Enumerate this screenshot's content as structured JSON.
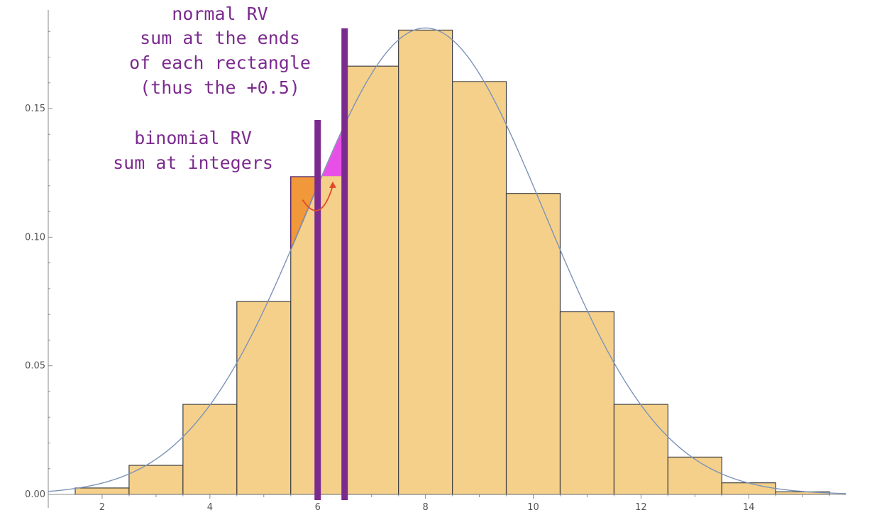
{
  "chart_data": {
    "type": "bar",
    "title": "",
    "xlabel": "",
    "ylabel": "",
    "xlim": [
      1.0,
      15.8
    ],
    "ylim": [
      0.0,
      0.19
    ],
    "x_ticks": [
      2,
      4,
      6,
      8,
      10,
      12,
      14
    ],
    "x_tick_labels": [
      "2",
      "4",
      "6",
      "8",
      "10",
      "12",
      "14"
    ],
    "y_ticks": [
      0.0,
      0.05,
      0.1,
      0.15
    ],
    "y_tick_labels": [
      "0.00",
      "0.05",
      "0.10",
      "0.15"
    ],
    "bin_width": 1,
    "categories": [
      2,
      3,
      4,
      5,
      6,
      7,
      8,
      9,
      10,
      11,
      12,
      13,
      14,
      15
    ],
    "values": [
      0.0025,
      0.0113,
      0.035,
      0.075,
      0.1235,
      0.1665,
      0.1805,
      0.1605,
      0.117,
      0.071,
      0.035,
      0.0145,
      0.0045,
      0.001
    ],
    "normal_curve": {
      "mean": 8.0,
      "sd": 2.2
    },
    "vertical_markers": [
      6.0,
      6.5
    ],
    "grid": false,
    "legend": "none",
    "colors": {
      "bar_fill": "#F5D08A",
      "bar_stroke": "#404040",
      "curve": "#7C93B8",
      "marker": "#7B2B8E",
      "orange_region": "#F0983A",
      "magenta_region": "#E84FE8",
      "arrow": "#E04A2A",
      "axis": "#8A8A8A",
      "annotation_text": "#7B2B8E"
    },
    "annotations": {
      "normal": [
        "normal RV",
        "sum at the ends",
        "of each rectangle",
        "(thus the +0.5)"
      ],
      "binomial": [
        "binomial RV",
        "sum at integers"
      ]
    }
  }
}
